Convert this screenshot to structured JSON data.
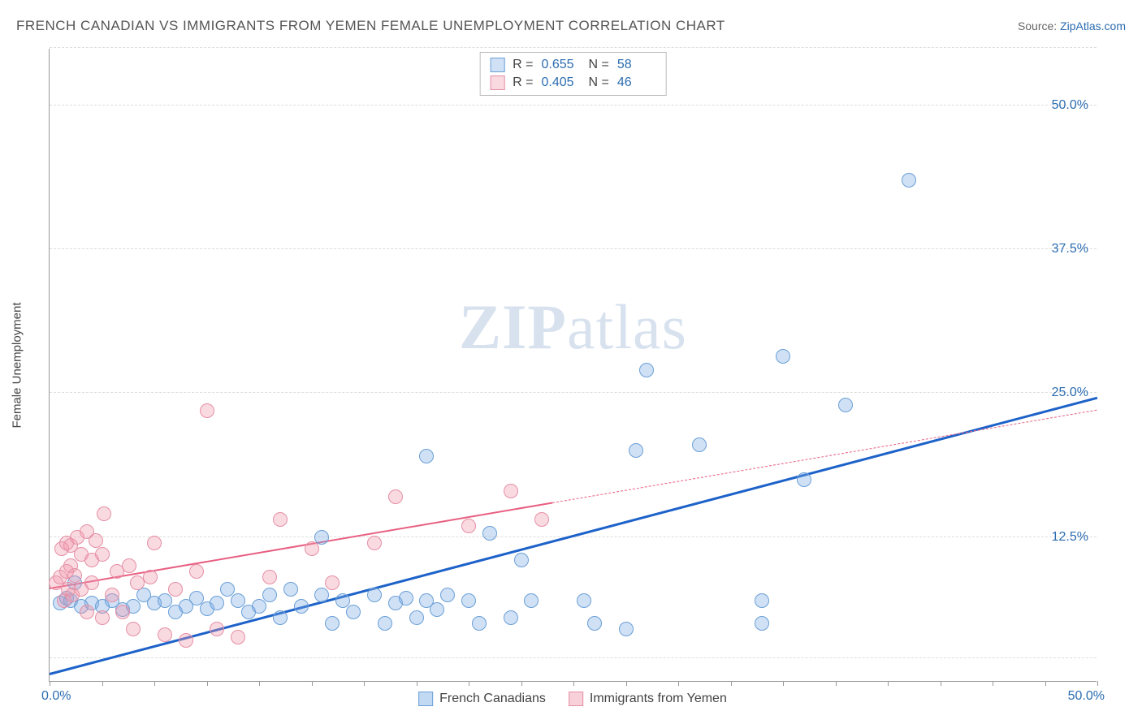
{
  "header": {
    "title": "FRENCH CANADIAN VS IMMIGRANTS FROM YEMEN FEMALE UNEMPLOYMENT CORRELATION CHART",
    "source_prefix": "Source: ",
    "source_name": "ZipAtlas.com"
  },
  "watermark": {
    "zip": "ZIP",
    "atlas": "atlas"
  },
  "chart": {
    "type": "scatter",
    "y_label": "Female Unemployment",
    "xlim": [
      0,
      50
    ],
    "ylim": [
      0,
      55
    ],
    "x_start_label": "0.0%",
    "x_end_label": "50.0%",
    "y_ticks": [
      {
        "v": 12.5,
        "label": "12.5%"
      },
      {
        "v": 25.0,
        "label": "25.0%"
      },
      {
        "v": 37.5,
        "label": "37.5%"
      },
      {
        "v": 50.0,
        "label": "50.0%"
      }
    ],
    "x_minor_ticks_every": 2.5,
    "grid_at": [
      2,
      12.5,
      25,
      37.5,
      50,
      55
    ],
    "background_color": "#ffffff",
    "grid_color": "#dddddd",
    "axis_color": "#999999",
    "point_radius": 9,
    "series": [
      {
        "name": "French Canadians",
        "fill": "rgba(120,170,230,0.35)",
        "stroke": "#6a9fd6",
        "trend_color": "#1d62c9",
        "trend_width": 2.5,
        "trend": {
          "x1": 0,
          "y1": 0.5,
          "x2": 50,
          "y2": 24.5,
          "dash_from_x": null
        },
        "R": "0.655",
        "N": "58",
        "points": [
          {
            "x": 0.5,
            "y": 6.8
          },
          {
            "x": 0.8,
            "y": 7.2
          },
          {
            "x": 1.0,
            "y": 7.0
          },
          {
            "x": 1.2,
            "y": 8.5
          },
          {
            "x": 1.5,
            "y": 6.5
          },
          {
            "x": 2.0,
            "y": 6.8
          },
          {
            "x": 2.5,
            "y": 6.5
          },
          {
            "x": 3.0,
            "y": 7.0
          },
          {
            "x": 3.5,
            "y": 6.2
          },
          {
            "x": 4.0,
            "y": 6.5
          },
          {
            "x": 4.5,
            "y": 7.5
          },
          {
            "x": 5.0,
            "y": 6.8
          },
          {
            "x": 5.5,
            "y": 7.0
          },
          {
            "x": 6.0,
            "y": 6.0
          },
          {
            "x": 6.5,
            "y": 6.5
          },
          {
            "x": 7.0,
            "y": 7.2
          },
          {
            "x": 7.5,
            "y": 6.3
          },
          {
            "x": 8.0,
            "y": 6.8
          },
          {
            "x": 8.5,
            "y": 8.0
          },
          {
            "x": 9.0,
            "y": 7.0
          },
          {
            "x": 9.5,
            "y": 6.0
          },
          {
            "x": 10.0,
            "y": 6.5
          },
          {
            "x": 10.5,
            "y": 7.5
          },
          {
            "x": 11.0,
            "y": 5.5
          },
          {
            "x": 11.5,
            "y": 8.0
          },
          {
            "x": 12.0,
            "y": 6.5
          },
          {
            "x": 13.0,
            "y": 7.5
          },
          {
            "x": 13.0,
            "y": 12.5
          },
          {
            "x": 13.5,
            "y": 5.0
          },
          {
            "x": 14.0,
            "y": 7.0
          },
          {
            "x": 14.5,
            "y": 6.0
          },
          {
            "x": 15.5,
            "y": 7.5
          },
          {
            "x": 16.0,
            "y": 5.0
          },
          {
            "x": 16.5,
            "y": 6.8
          },
          {
            "x": 17.0,
            "y": 7.2
          },
          {
            "x": 17.5,
            "y": 5.5
          },
          {
            "x": 18.0,
            "y": 7.0
          },
          {
            "x": 18.5,
            "y": 6.2
          },
          {
            "x": 19.0,
            "y": 7.5
          },
          {
            "x": 20.0,
            "y": 7.0
          },
          {
            "x": 20.5,
            "y": 5.0
          },
          {
            "x": 21.0,
            "y": 12.8
          },
          {
            "x": 22.0,
            "y": 5.5
          },
          {
            "x": 22.5,
            "y": 10.5
          },
          {
            "x": 23.0,
            "y": 7.0
          },
          {
            "x": 18.0,
            "y": 19.5
          },
          {
            "x": 25.5,
            "y": 7.0
          },
          {
            "x": 26.0,
            "y": 5.0
          },
          {
            "x": 27.5,
            "y": 4.5
          },
          {
            "x": 28.0,
            "y": 20.0
          },
          {
            "x": 28.5,
            "y": 27.0
          },
          {
            "x": 31.0,
            "y": 20.5
          },
          {
            "x": 34.0,
            "y": 5.0
          },
          {
            "x": 35.0,
            "y": 28.2
          },
          {
            "x": 36.0,
            "y": 17.5
          },
          {
            "x": 38.0,
            "y": 24.0
          },
          {
            "x": 41.0,
            "y": 43.5
          },
          {
            "x": 34.0,
            "y": 7.0
          }
        ]
      },
      {
        "name": "Immigrants from Yemen",
        "fill": "rgba(240,150,170,0.35)",
        "stroke": "#e58fa5",
        "trend_color": "#e85f82",
        "trend_width": 2,
        "trend": {
          "x1": 0,
          "y1": 8.0,
          "x2": 50,
          "y2": 23.5,
          "dash_from_x": 24
        },
        "R": "0.405",
        "N": "46",
        "points": [
          {
            "x": 0.3,
            "y": 8.5
          },
          {
            "x": 0.5,
            "y": 9.0
          },
          {
            "x": 0.6,
            "y": 11.5
          },
          {
            "x": 0.7,
            "y": 7.0
          },
          {
            "x": 0.8,
            "y": 12.0
          },
          {
            "x": 0.8,
            "y": 9.5
          },
          {
            "x": 0.9,
            "y": 8.0
          },
          {
            "x": 1.0,
            "y": 10.0
          },
          {
            "x": 1.0,
            "y": 11.8
          },
          {
            "x": 1.1,
            "y": 7.5
          },
          {
            "x": 1.2,
            "y": 9.2
          },
          {
            "x": 1.3,
            "y": 12.5
          },
          {
            "x": 1.5,
            "y": 8.0
          },
          {
            "x": 1.5,
            "y": 11.0
          },
          {
            "x": 1.8,
            "y": 13.0
          },
          {
            "x": 1.8,
            "y": 6.0
          },
          {
            "x": 2.0,
            "y": 10.5
          },
          {
            "x": 2.0,
            "y": 8.5
          },
          {
            "x": 2.2,
            "y": 12.2
          },
          {
            "x": 2.5,
            "y": 5.5
          },
          {
            "x": 2.5,
            "y": 11.0
          },
          {
            "x": 2.6,
            "y": 14.5
          },
          {
            "x": 3.0,
            "y": 7.5
          },
          {
            "x": 3.2,
            "y": 9.5
          },
          {
            "x": 3.5,
            "y": 6.0
          },
          {
            "x": 3.8,
            "y": 10.0
          },
          {
            "x": 4.0,
            "y": 4.5
          },
          {
            "x": 4.2,
            "y": 8.5
          },
          {
            "x": 4.8,
            "y": 9.0
          },
          {
            "x": 5.0,
            "y": 12.0
          },
          {
            "x": 5.5,
            "y": 4.0
          },
          {
            "x": 6.0,
            "y": 8.0
          },
          {
            "x": 6.5,
            "y": 3.5
          },
          {
            "x": 7.0,
            "y": 9.5
          },
          {
            "x": 7.5,
            "y": 23.5
          },
          {
            "x": 8.0,
            "y": 4.5
          },
          {
            "x": 9.0,
            "y": 3.8
          },
          {
            "x": 10.5,
            "y": 9.0
          },
          {
            "x": 11.0,
            "y": 14.0
          },
          {
            "x": 12.5,
            "y": 11.5
          },
          {
            "x": 13.5,
            "y": 8.5
          },
          {
            "x": 15.5,
            "y": 12.0
          },
          {
            "x": 16.5,
            "y": 16.0
          },
          {
            "x": 20.0,
            "y": 13.5
          },
          {
            "x": 22.0,
            "y": 16.5
          },
          {
            "x": 23.5,
            "y": 14.0
          }
        ]
      }
    ]
  },
  "legend_bottom": [
    {
      "label": "French Canadians",
      "fill": "rgba(120,170,230,0.45)",
      "stroke": "#6a9fd6"
    },
    {
      "label": "Immigrants from Yemen",
      "fill": "rgba(240,150,170,0.45)",
      "stroke": "#e58fa5"
    }
  ],
  "stats_legend_labels": {
    "R": "R =",
    "N": "N ="
  }
}
